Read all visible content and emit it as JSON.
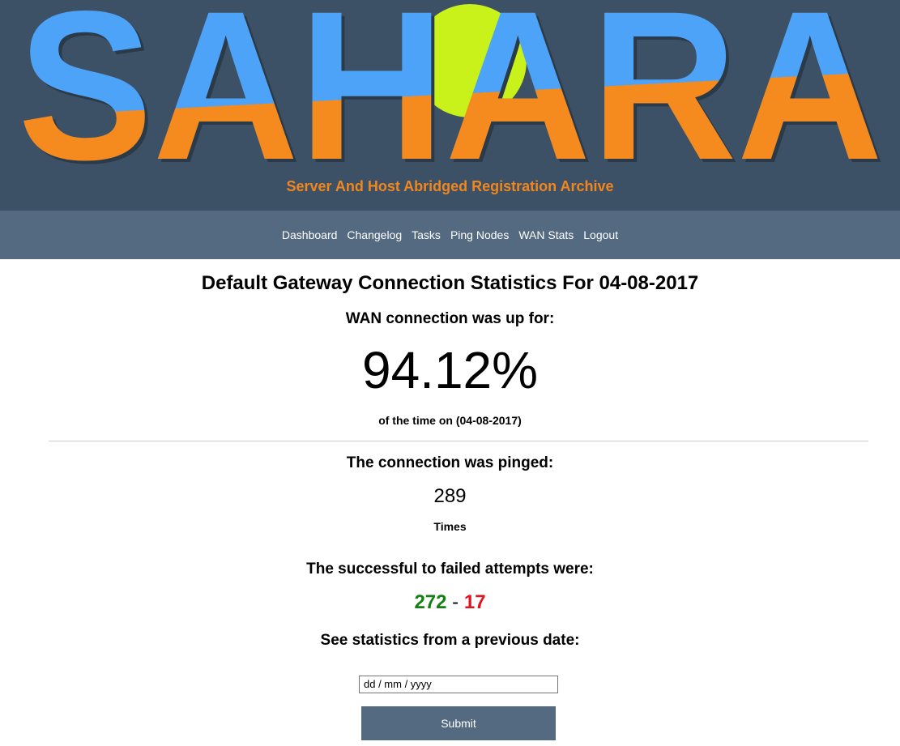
{
  "header": {
    "logo": "SAHARA",
    "subtitle": "Server And Host Abridged Registration Archive"
  },
  "nav": {
    "items": [
      "Dashboard",
      "Changelog",
      "Tasks",
      "Ping Nodes",
      "WAN Stats",
      "Logout"
    ]
  },
  "content": {
    "title": "Default Gateway Connection Statistics For 04-08-2017",
    "uptime": {
      "label": "WAN connection was up for:",
      "value": "94.12%",
      "caption": "of the time on (04-08-2017)"
    },
    "pings": {
      "label": "The connection was pinged:",
      "count": "289",
      "unit": "Times"
    },
    "attempts": {
      "label": "The successful to failed attempts were:",
      "successful": "272",
      "separator": "-",
      "failed": "17"
    },
    "history": {
      "label": "See statistics from a previous date:",
      "placeholder": "dd / mm / yyyy",
      "submit": "Submit"
    }
  }
}
